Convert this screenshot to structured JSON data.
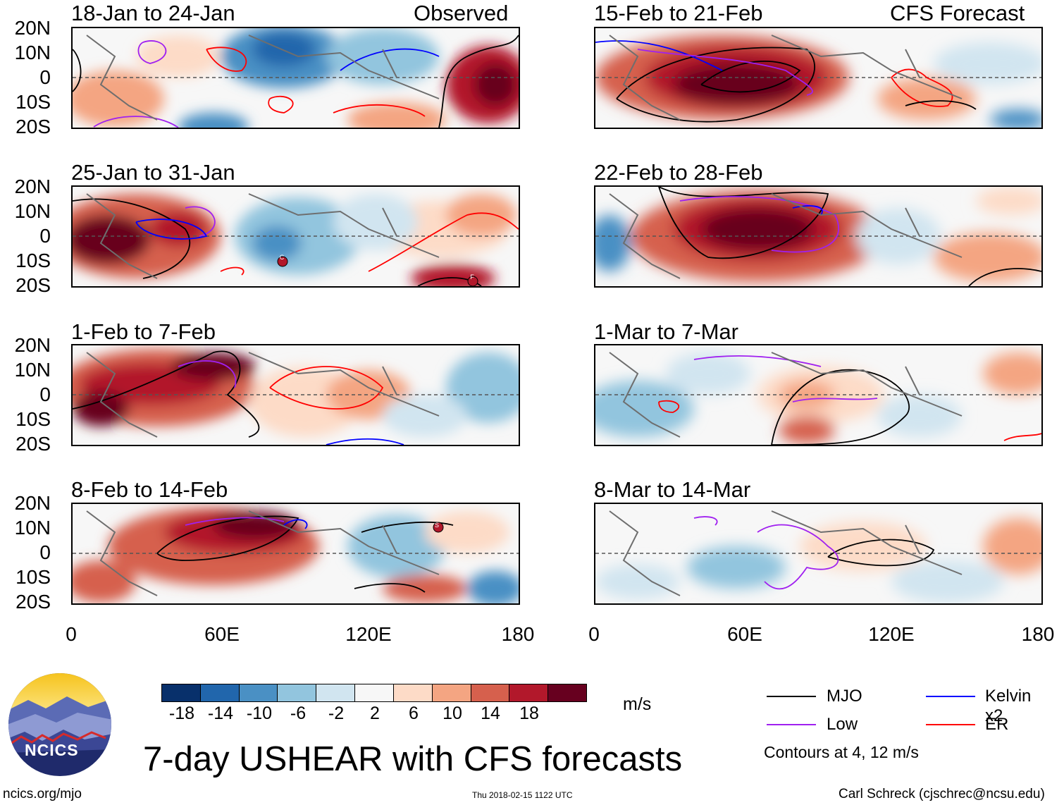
{
  "header": {
    "observed_label": "Observed",
    "forecast_label": "CFS Forecast"
  },
  "panels_observed": [
    {
      "title": "18-Jan to 24-Jan"
    },
    {
      "title": "25-Jan to 31-Jan"
    },
    {
      "title": "1-Feb to 7-Feb"
    },
    {
      "title": "8-Feb to 14-Feb"
    }
  ],
  "panels_forecast": [
    {
      "title": "15-Feb to 21-Feb"
    },
    {
      "title": "22-Feb to 28-Feb"
    },
    {
      "title": "1-Mar to 7-Mar"
    },
    {
      "title": "8-Mar to 14-Mar"
    }
  ],
  "lat_labels": [
    "20N",
    "10N",
    "0",
    "10S",
    "20S"
  ],
  "lon_labels": [
    "0",
    "60E",
    "120E",
    "180"
  ],
  "storm_markers": [
    {
      "panel": "obs-2",
      "letter": "C"
    },
    {
      "panel": "obs-2",
      "letter": "F"
    },
    {
      "panel": "obs-4",
      "letter": "S"
    }
  ],
  "colorbar": {
    "colors": [
      "#08306b",
      "#2166ac",
      "#4a90c4",
      "#92c5de",
      "#d1e5f0",
      "#f7f7f7",
      "#fddbc7",
      "#f4a582",
      "#d6604d",
      "#b2182b",
      "#67001f"
    ],
    "ticks": [
      "-18",
      "-14",
      "-10",
      "-6",
      "-2",
      "2",
      "6",
      "10",
      "14",
      "18"
    ],
    "units": "m/s"
  },
  "legend": {
    "items": [
      {
        "label": "MJO",
        "color": "#000000"
      },
      {
        "label": "Kelvin x2",
        "color": "#0000ff"
      },
      {
        "label": "Low",
        "color": "#a020f0"
      },
      {
        "label": "ER",
        "color": "#ff0000"
      }
    ],
    "note": "Contours at 4, 12 m/s"
  },
  "logo": {
    "text": "NCICS"
  },
  "footer": {
    "title": "7-day USHEAR with CFS forecasts",
    "url": "ncics.org/mjo",
    "timestamp": "Thu 2018-02-15 1122 UTC",
    "credit": "Carl Schreck (cjschrec@ncsu.edu)"
  }
}
